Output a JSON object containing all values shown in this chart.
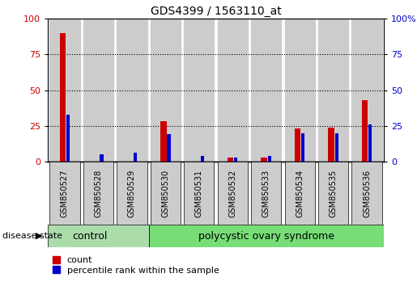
{
  "title": "GDS4399 / 1563110_at",
  "samples": [
    "GSM850527",
    "GSM850528",
    "GSM850529",
    "GSM850530",
    "GSM850531",
    "GSM850532",
    "GSM850533",
    "GSM850534",
    "GSM850535",
    "GSM850536"
  ],
  "red_values": [
    90,
    0,
    0,
    28,
    0,
    3,
    3,
    23,
    24,
    43
  ],
  "blue_values": [
    33,
    5,
    6,
    19,
    4,
    3,
    4,
    20,
    20,
    26
  ],
  "red_color": "#cc0000",
  "blue_color": "#0000cc",
  "left_yaxis_color": "#cc0000",
  "right_yaxis_color": "#0000cc",
  "ylim": [
    0,
    100
  ],
  "yticks": [
    0,
    25,
    50,
    75,
    100
  ],
  "right_ytick_labels": [
    "0",
    "25",
    "50",
    "75",
    "100%"
  ],
  "bg_color": "#ffffff",
  "bar_bg_color": "#cccccc",
  "n_control": 3,
  "control_label": "control",
  "pcos_label": "polycystic ovary syndrome",
  "control_color": "#aaddaa",
  "pcos_color": "#77dd77",
  "disease_state_label": "disease state",
  "legend_red_label": "count",
  "legend_blue_label": "percentile rank within the sample"
}
